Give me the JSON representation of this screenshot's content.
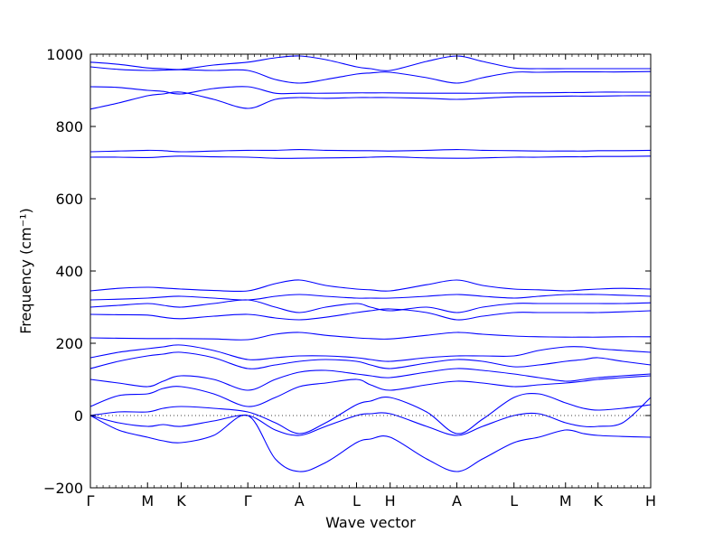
{
  "chart_data": {
    "type": "line",
    "xlabel": "Wave vector",
    "ylabel": "Frequency (cm⁻¹)",
    "ylim": [
      -200,
      1000
    ],
    "yticks": [
      -200,
      0,
      200,
      400,
      600,
      800,
      1000
    ],
    "xlim": [
      0,
      1
    ],
    "high_symmetry_points": [
      {
        "label": "Γ",
        "x": 0.0
      },
      {
        "label": "M",
        "x": 0.102
      },
      {
        "label": "K",
        "x": 0.162
      },
      {
        "label": "Γ",
        "x": 0.281
      },
      {
        "label": "A",
        "x": 0.373
      },
      {
        "label": "L",
        "x": 0.475
      },
      {
        "label": "H",
        "x": 0.535
      },
      {
        "label": "A",
        "x": 0.654
      },
      {
        "label": "L",
        "x": 0.756
      },
      {
        "label": "M",
        "x": 0.848
      },
      {
        "label": "K",
        "x": 0.906
      },
      {
        "label": "H",
        "x": 1.0
      }
    ],
    "zero_line": 0,
    "series": [
      {
        "x": [
          0,
          0.05,
          0.102,
          0.13,
          0.162,
          0.22,
          0.281,
          0.33,
          0.373,
          0.42,
          0.475,
          0.5,
          0.535,
          0.6,
          0.654,
          0.7,
          0.756,
          0.8,
          0.848,
          0.88,
          0.906,
          0.95,
          1.0
        ],
        "y": [
          0,
          -40,
          -60,
          -70,
          -75,
          -55,
          0,
          -120,
          -155,
          -130,
          -75,
          -65,
          -60,
          -120,
          -155,
          -120,
          -75,
          -60,
          -40,
          -50,
          -55,
          -58,
          -60
        ]
      },
      {
        "x": [
          0,
          0.05,
          0.102,
          0.13,
          0.162,
          0.22,
          0.281,
          0.33,
          0.373,
          0.42,
          0.475,
          0.5,
          0.535,
          0.6,
          0.654,
          0.7,
          0.756,
          0.8,
          0.848,
          0.88,
          0.906,
          0.95,
          1.0
        ],
        "y": [
          0,
          -20,
          -30,
          -25,
          -30,
          -15,
          0,
          -40,
          -55,
          -30,
          0,
          5,
          5,
          -30,
          -55,
          -30,
          0,
          5,
          -20,
          -30,
          -30,
          -20,
          50
        ]
      },
      {
        "x": [
          0,
          0.05,
          0.102,
          0.13,
          0.162,
          0.22,
          0.281,
          0.33,
          0.373,
          0.42,
          0.475,
          0.5,
          0.535,
          0.6,
          0.654,
          0.7,
          0.756,
          0.8,
          0.848,
          0.88,
          0.906,
          0.95,
          1.0
        ],
        "y": [
          0,
          10,
          10,
          20,
          25,
          20,
          10,
          -20,
          -50,
          -20,
          30,
          40,
          50,
          10,
          -50,
          -10,
          50,
          60,
          35,
          20,
          15,
          20,
          30
        ]
      },
      {
        "x": [
          0,
          0.05,
          0.102,
          0.13,
          0.162,
          0.22,
          0.281,
          0.33,
          0.373,
          0.42,
          0.475,
          0.5,
          0.535,
          0.6,
          0.654,
          0.7,
          0.756,
          0.8,
          0.848,
          0.88,
          0.906,
          0.95,
          1.0
        ],
        "y": [
          25,
          55,
          60,
          75,
          80,
          60,
          25,
          50,
          80,
          90,
          100,
          85,
          70,
          85,
          95,
          90,
          80,
          85,
          90,
          95,
          100,
          105,
          110
        ]
      },
      {
        "x": [
          0,
          0.05,
          0.102,
          0.13,
          0.162,
          0.22,
          0.281,
          0.33,
          0.373,
          0.42,
          0.475,
          0.5,
          0.535,
          0.6,
          0.654,
          0.7,
          0.756,
          0.8,
          0.848,
          0.88,
          0.906,
          0.95,
          1.0
        ],
        "y": [
          100,
          90,
          80,
          95,
          110,
          100,
          70,
          100,
          120,
          125,
          115,
          110,
          105,
          120,
          130,
          125,
          115,
          105,
          95,
          100,
          105,
          110,
          115
        ]
      },
      {
        "x": [
          0,
          0.05,
          0.102,
          0.13,
          0.162,
          0.22,
          0.281,
          0.33,
          0.373,
          0.42,
          0.475,
          0.5,
          0.535,
          0.6,
          0.654,
          0.7,
          0.756,
          0.8,
          0.848,
          0.88,
          0.906,
          0.95,
          1.0
        ],
        "y": [
          130,
          150,
          165,
          170,
          175,
          160,
          130,
          140,
          150,
          155,
          150,
          140,
          130,
          145,
          155,
          150,
          135,
          140,
          150,
          155,
          160,
          150,
          140
        ]
      },
      {
        "x": [
          0,
          0.05,
          0.102,
          0.13,
          0.162,
          0.22,
          0.281,
          0.33,
          0.373,
          0.42,
          0.475,
          0.5,
          0.535,
          0.6,
          0.654,
          0.7,
          0.756,
          0.8,
          0.848,
          0.88,
          0.906,
          0.95,
          1.0
        ],
        "y": [
          160,
          175,
          185,
          190,
          195,
          180,
          155,
          160,
          165,
          165,
          160,
          155,
          150,
          160,
          165,
          165,
          165,
          180,
          190,
          190,
          185,
          180,
          175
        ]
      },
      {
        "x": [
          0,
          0.05,
          0.102,
          0.13,
          0.162,
          0.22,
          0.281,
          0.33,
          0.373,
          0.42,
          0.475,
          0.5,
          0.535,
          0.6,
          0.654,
          0.7,
          0.756,
          0.8,
          0.848,
          0.88,
          0.906,
          0.95,
          1.0
        ],
        "y": [
          215,
          214,
          213,
          213,
          213,
          212,
          210,
          225,
          230,
          222,
          215,
          213,
          212,
          222,
          230,
          225,
          220,
          218,
          217,
          217,
          217,
          218,
          218
        ]
      },
      {
        "x": [
          0,
          0.05,
          0.102,
          0.13,
          0.162,
          0.22,
          0.281,
          0.33,
          0.373,
          0.42,
          0.475,
          0.5,
          0.535,
          0.6,
          0.654,
          0.7,
          0.756,
          0.8,
          0.848,
          0.88,
          0.906,
          0.95,
          1.0
        ],
        "y": [
          280,
          279,
          278,
          272,
          268,
          275,
          280,
          270,
          265,
          272,
          285,
          290,
          295,
          285,
          265,
          275,
          285,
          285,
          285,
          285,
          285,
          287,
          290
        ]
      },
      {
        "x": [
          0,
          0.05,
          0.102,
          0.13,
          0.162,
          0.22,
          0.281,
          0.33,
          0.373,
          0.42,
          0.475,
          0.5,
          0.535,
          0.6,
          0.654,
          0.7,
          0.756,
          0.8,
          0.848,
          0.88,
          0.906,
          0.95,
          1.0
        ],
        "y": [
          300,
          305,
          310,
          305,
          300,
          310,
          320,
          300,
          285,
          300,
          310,
          300,
          290,
          300,
          285,
          300,
          310,
          310,
          310,
          310,
          310,
          310,
          312
        ]
      },
      {
        "x": [
          0,
          0.05,
          0.102,
          0.13,
          0.162,
          0.22,
          0.281,
          0.33,
          0.373,
          0.42,
          0.475,
          0.5,
          0.535,
          0.6,
          0.654,
          0.7,
          0.756,
          0.8,
          0.848,
          0.88,
          0.906,
          0.95,
          1.0
        ],
        "y": [
          320,
          322,
          325,
          328,
          330,
          325,
          320,
          330,
          335,
          330,
          325,
          325,
          325,
          330,
          335,
          330,
          325,
          330,
          335,
          335,
          335,
          333,
          330
        ]
      },
      {
        "x": [
          0,
          0.05,
          0.102,
          0.13,
          0.162,
          0.22,
          0.281,
          0.33,
          0.373,
          0.42,
          0.475,
          0.5,
          0.535,
          0.6,
          0.654,
          0.7,
          0.756,
          0.8,
          0.848,
          0.88,
          0.906,
          0.95,
          1.0
        ],
        "y": [
          345,
          352,
          355,
          353,
          350,
          346,
          345,
          365,
          375,
          360,
          350,
          348,
          345,
          362,
          375,
          360,
          350,
          348,
          345,
          348,
          350,
          352,
          350
        ]
      },
      {
        "x": [
          0,
          0.05,
          0.102,
          0.13,
          0.162,
          0.22,
          0.281,
          0.33,
          0.373,
          0.42,
          0.475,
          0.5,
          0.535,
          0.6,
          0.654,
          0.7,
          0.756,
          0.8,
          0.848,
          0.88,
          0.906,
          0.95,
          1.0
        ],
        "y": [
          715,
          715,
          714,
          716,
          718,
          716,
          715,
          712,
          712,
          713,
          714,
          715,
          716,
          713,
          712,
          713,
          715,
          715,
          716,
          716,
          717,
          717,
          718
        ]
      },
      {
        "x": [
          0,
          0.05,
          0.102,
          0.13,
          0.162,
          0.22,
          0.281,
          0.33,
          0.373,
          0.42,
          0.475,
          0.5,
          0.535,
          0.6,
          0.654,
          0.7,
          0.756,
          0.8,
          0.848,
          0.88,
          0.906,
          0.95,
          1.0
        ],
        "y": [
          730,
          732,
          734,
          733,
          730,
          732,
          734,
          734,
          736,
          734,
          733,
          733,
          732,
          734,
          736,
          734,
          733,
          732,
          732,
          732,
          733,
          733,
          734
        ]
      },
      {
        "x": [
          0,
          0.05,
          0.102,
          0.13,
          0.162,
          0.22,
          0.281,
          0.33,
          0.373,
          0.42,
          0.475,
          0.5,
          0.535,
          0.6,
          0.654,
          0.7,
          0.756,
          0.8,
          0.848,
          0.88,
          0.906,
          0.95,
          1.0
        ],
        "y": [
          848,
          865,
          885,
          890,
          895,
          875,
          850,
          875,
          880,
          878,
          880,
          880,
          880,
          878,
          875,
          878,
          882,
          883,
          884,
          884,
          884,
          885,
          885
        ]
      },
      {
        "x": [
          0,
          0.05,
          0.102,
          0.13,
          0.162,
          0.22,
          0.281,
          0.33,
          0.373,
          0.42,
          0.475,
          0.5,
          0.535,
          0.6,
          0.654,
          0.7,
          0.756,
          0.8,
          0.848,
          0.88,
          0.906,
          0.95,
          1.0
        ],
        "y": [
          910,
          908,
          900,
          897,
          890,
          905,
          910,
          892,
          892,
          892,
          893,
          893,
          893,
          892,
          892,
          892,
          893,
          893,
          894,
          894,
          895,
          895,
          895
        ]
      },
      {
        "x": [
          0,
          0.05,
          0.102,
          0.13,
          0.162,
          0.22,
          0.281,
          0.33,
          0.373,
          0.42,
          0.475,
          0.5,
          0.535,
          0.6,
          0.654,
          0.7,
          0.756,
          0.8,
          0.848,
          0.88,
          0.906,
          0.95,
          1.0
        ],
        "y": [
          965,
          958,
          955,
          956,
          957,
          955,
          955,
          930,
          920,
          930,
          945,
          948,
          950,
          935,
          920,
          935,
          950,
          950,
          951,
          951,
          951,
          951,
          952
        ]
      },
      {
        "x": [
          0,
          0.05,
          0.102,
          0.13,
          0.162,
          0.22,
          0.281,
          0.33,
          0.373,
          0.42,
          0.475,
          0.5,
          0.535,
          0.6,
          0.654,
          0.7,
          0.756,
          0.8,
          0.848,
          0.88,
          0.906,
          0.95,
          1.0
        ],
        "y": [
          978,
          972,
          962,
          960,
          958,
          970,
          978,
          990,
          995,
          985,
          965,
          960,
          955,
          980,
          995,
          980,
          962,
          960,
          960,
          960,
          960,
          960,
          960
        ]
      }
    ]
  }
}
